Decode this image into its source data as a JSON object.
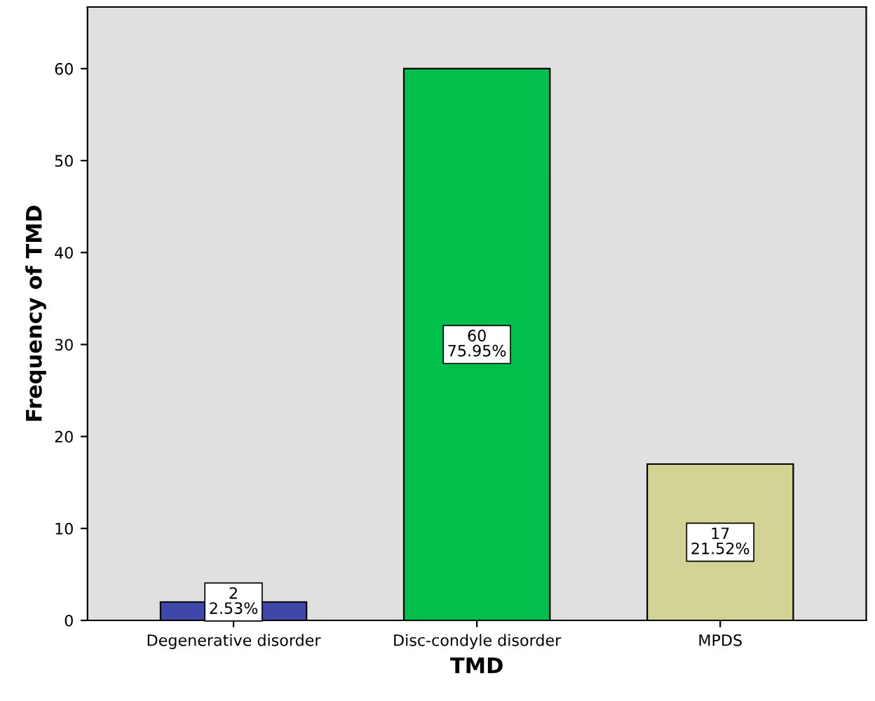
{
  "chart_data": {
    "type": "bar",
    "xlabel": "TMD",
    "ylabel": "Frequency of TMD",
    "categories": [
      "Degenerative disorder",
      "Disc-condyle disorder",
      "MPDS"
    ],
    "values": [
      2,
      60,
      17
    ],
    "colors": [
      "#3f48a8",
      "#00c04b",
      "#d3d396"
    ],
    "value_labels": [
      "2\n2.53%",
      "60\n75.95%",
      "17\n21.52%"
    ],
    "ylim": [
      0,
      66.7
    ],
    "yticks": [
      0,
      10,
      20,
      30,
      40,
      50,
      60
    ],
    "grid": false,
    "legend": false
  }
}
